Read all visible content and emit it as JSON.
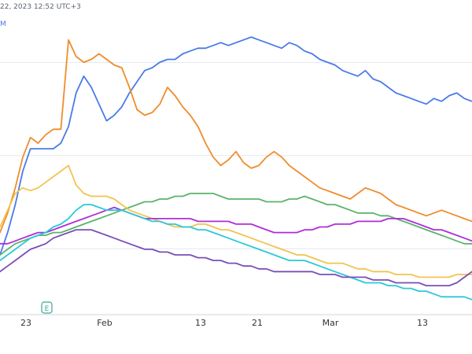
{
  "header": {
    "timestamp": "22, 2023 12:52 UTC+3",
    "legend_fragment": "M"
  },
  "event_marker": {
    "label": "E"
  },
  "colors": {
    "blue": "#4a7be8",
    "orange": "#ef8c2b",
    "green": "#5bb46a",
    "yellow": "#f2c44e",
    "magenta": "#b02dd8",
    "cyan": "#2cc8d9",
    "purple": "#7a4fb5",
    "grid": "#e4e8f0",
    "axis_text": "#333333"
  },
  "chart_data": {
    "type": "line",
    "x_ticks": [
      "23",
      "Feb",
      "13",
      "21",
      "Mar",
      "13"
    ],
    "x_range": [
      17,
      79
    ],
    "ylim": [
      0,
      100
    ],
    "grid": "horizontal",
    "series": [
      {
        "key": "blue",
        "x": [
          17,
          18,
          19,
          20,
          21,
          22,
          23,
          24,
          25,
          26,
          27,
          28,
          29,
          30,
          31,
          32,
          33,
          34,
          35,
          36,
          37,
          38,
          39,
          40,
          41,
          42,
          43,
          44,
          45,
          46,
          47,
          48,
          49,
          50,
          51,
          52,
          53,
          54,
          55,
          56,
          57,
          58,
          59,
          60,
          61,
          62,
          63,
          64,
          65,
          66,
          67,
          68,
          69,
          70,
          71,
          72,
          73,
          74,
          75,
          76,
          77,
          78,
          79
        ],
        "values": [
          20,
          28,
          38,
          50,
          58,
          58,
          58,
          58,
          60,
          66,
          78,
          84,
          80,
          74,
          68,
          70,
          73,
          78,
          82,
          86,
          87,
          89,
          90,
          90,
          92,
          93,
          94,
          94,
          95,
          96,
          95,
          96,
          97,
          98,
          97,
          96,
          95,
          94,
          96,
          95,
          93,
          92,
          90,
          89,
          88,
          86,
          85,
          84,
          86,
          83,
          82,
          80,
          78,
          77,
          76,
          75,
          74,
          76,
          75,
          77,
          78,
          76,
          75
        ]
      },
      {
        "key": "orange",
        "x": [
          17,
          18,
          19,
          20,
          21,
          22,
          23,
          24,
          25,
          26,
          27,
          28,
          29,
          30,
          31,
          32,
          33,
          34,
          35,
          36,
          37,
          38,
          39,
          40,
          41,
          42,
          43,
          44,
          45,
          46,
          47,
          48,
          49,
          50,
          51,
          52,
          53,
          54,
          55,
          56,
          57,
          58,
          59,
          60,
          61,
          62,
          63,
          64,
          65,
          66,
          67,
          68,
          69,
          70,
          71,
          72,
          73,
          74,
          75,
          76,
          77,
          78,
          79
        ],
        "values": [
          28,
          35,
          44,
          55,
          62,
          60,
          63,
          65,
          65,
          97,
          91,
          89,
          90,
          92,
          90,
          88,
          87,
          80,
          72,
          70,
          71,
          74,
          80,
          77,
          73,
          70,
          66,
          60,
          55,
          52,
          54,
          57,
          53,
          51,
          52,
          55,
          57,
          55,
          52,
          50,
          48,
          46,
          44,
          43,
          42,
          41,
          40,
          42,
          44,
          43,
          42,
          40,
          38,
          37,
          36,
          35,
          34,
          35,
          36,
          35,
          34,
          33,
          32
        ]
      },
      {
        "key": "green",
        "x": [
          17,
          18,
          19,
          20,
          21,
          22,
          23,
          24,
          25,
          26,
          27,
          28,
          29,
          30,
          31,
          32,
          33,
          34,
          35,
          36,
          37,
          38,
          39,
          40,
          41,
          42,
          43,
          44,
          45,
          46,
          47,
          48,
          49,
          50,
          51,
          52,
          53,
          54,
          55,
          56,
          57,
          58,
          59,
          60,
          61,
          62,
          63,
          64,
          65,
          66,
          67,
          68,
          69,
          70,
          71,
          72,
          73,
          74,
          75,
          76,
          77,
          78,
          79
        ],
        "values": [
          20,
          22,
          24,
          25,
          26,
          27,
          27,
          28,
          28,
          29,
          30,
          31,
          32,
          33,
          34,
          35,
          36,
          37,
          38,
          39,
          39,
          40,
          40,
          41,
          41,
          42,
          42,
          42,
          42,
          41,
          40,
          40,
          40,
          40,
          40,
          39,
          39,
          39,
          40,
          40,
          41,
          40,
          39,
          38,
          38,
          37,
          36,
          35,
          35,
          35,
          34,
          34,
          33,
          32,
          31,
          30,
          29,
          28,
          27,
          26,
          25,
          24,
          24
        ]
      },
      {
        "key": "yellow",
        "x": [
          17,
          18,
          19,
          20,
          21,
          22,
          23,
          24,
          25,
          26,
          27,
          28,
          29,
          30,
          31,
          32,
          33,
          34,
          35,
          36,
          37,
          38,
          39,
          40,
          41,
          42,
          43,
          44,
          45,
          46,
          47,
          48,
          49,
          50,
          51,
          52,
          53,
          54,
          55,
          56,
          57,
          58,
          59,
          60,
          61,
          62,
          63,
          64,
          65,
          66,
          67,
          68,
          69,
          70,
          71,
          72,
          73,
          74,
          75,
          76,
          77,
          78,
          79
        ],
        "values": [
          30,
          36,
          42,
          44,
          43,
          44,
          46,
          48,
          50,
          52,
          45,
          42,
          41,
          41,
          41,
          40,
          38,
          36,
          35,
          34,
          33,
          32,
          31,
          30,
          30,
          30,
          31,
          31,
          30,
          29,
          29,
          28,
          27,
          26,
          25,
          24,
          23,
          22,
          21,
          20,
          20,
          19,
          18,
          17,
          17,
          17,
          16,
          15,
          15,
          14,
          14,
          14,
          13,
          13,
          13,
          12,
          12,
          12,
          12,
          12,
          13,
          13,
          13
        ]
      },
      {
        "key": "magenta",
        "x": [
          17,
          18,
          19,
          20,
          21,
          22,
          23,
          24,
          25,
          26,
          27,
          28,
          29,
          30,
          31,
          32,
          33,
          34,
          35,
          36,
          37,
          38,
          39,
          40,
          41,
          42,
          43,
          44,
          45,
          46,
          47,
          48,
          49,
          50,
          51,
          52,
          53,
          54,
          55,
          56,
          57,
          58,
          59,
          60,
          61,
          62,
          63,
          64,
          65,
          66,
          67,
          68,
          69,
          70,
          71,
          72,
          73,
          74,
          75,
          76,
          77,
          78,
          79
        ],
        "values": [
          24,
          24,
          25,
          26,
          27,
          28,
          28,
          29,
          30,
          31,
          32,
          33,
          34,
          35,
          36,
          37,
          36,
          35,
          34,
          33,
          33,
          33,
          33,
          33,
          33,
          33,
          32,
          32,
          32,
          32,
          32,
          31,
          31,
          31,
          30,
          29,
          28,
          28,
          28,
          28,
          29,
          29,
          30,
          30,
          31,
          31,
          31,
          32,
          32,
          32,
          32,
          33,
          33,
          33,
          32,
          31,
          30,
          29,
          29,
          28,
          27,
          26,
          25
        ]
      },
      {
        "key": "cyan",
        "x": [
          17,
          18,
          19,
          20,
          21,
          22,
          23,
          24,
          25,
          26,
          27,
          28,
          29,
          30,
          31,
          32,
          33,
          34,
          35,
          36,
          37,
          38,
          39,
          40,
          41,
          42,
          43,
          44,
          45,
          46,
          47,
          48,
          49,
          50,
          51,
          52,
          53,
          54,
          55,
          56,
          57,
          58,
          59,
          60,
          61,
          62,
          63,
          64,
          65,
          66,
          67,
          68,
          69,
          70,
          71,
          72,
          73,
          74,
          75,
          76,
          77,
          78,
          79
        ],
        "values": [
          18,
          20,
          22,
          24,
          26,
          27,
          28,
          30,
          31,
          33,
          36,
          38,
          38,
          37,
          36,
          36,
          36,
          35,
          34,
          33,
          32,
          32,
          31,
          31,
          30,
          30,
          29,
          29,
          28,
          27,
          26,
          25,
          24,
          23,
          22,
          21,
          20,
          19,
          18,
          18,
          18,
          17,
          16,
          15,
          14,
          13,
          12,
          11,
          10,
          10,
          10,
          9,
          9,
          8,
          8,
          7,
          7,
          6,
          5,
          5,
          5,
          5,
          4
        ]
      },
      {
        "key": "purple",
        "x": [
          17,
          18,
          19,
          20,
          21,
          22,
          23,
          24,
          25,
          26,
          27,
          28,
          29,
          30,
          31,
          32,
          33,
          34,
          35,
          36,
          37,
          38,
          39,
          40,
          41,
          42,
          43,
          44,
          45,
          46,
          47,
          48,
          49,
          50,
          51,
          52,
          53,
          54,
          55,
          56,
          57,
          58,
          59,
          60,
          61,
          62,
          63,
          64,
          65,
          66,
          67,
          68,
          69,
          70,
          71,
          72,
          73,
          74,
          75,
          76,
          77,
          78,
          79
        ],
        "values": [
          14,
          16,
          18,
          20,
          22,
          23,
          24,
          26,
          27,
          28,
          29,
          29,
          29,
          28,
          27,
          26,
          25,
          24,
          23,
          22,
          22,
          21,
          21,
          20,
          20,
          20,
          19,
          19,
          18,
          18,
          17,
          17,
          16,
          16,
          15,
          15,
          14,
          14,
          14,
          14,
          14,
          14,
          13,
          13,
          13,
          12,
          12,
          12,
          12,
          11,
          11,
          11,
          10,
          10,
          10,
          10,
          9,
          9,
          9,
          9,
          10,
          12,
          14
        ]
      }
    ]
  }
}
